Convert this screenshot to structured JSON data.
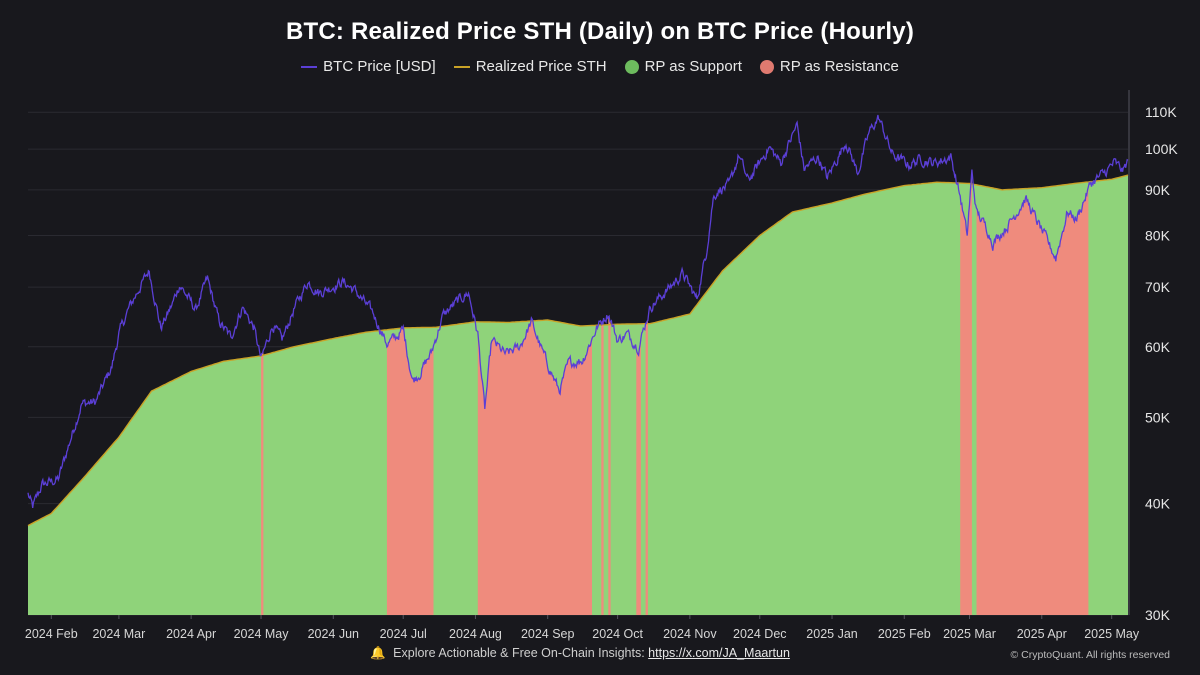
{
  "chart_data": {
    "type": "line",
    "title": "BTC: Realized Price STH (Daily) on BTC Price (Hourly)",
    "y_scale": "log",
    "ylim": [
      30000,
      115000
    ],
    "y_ticks": [
      30000,
      40000,
      50000,
      60000,
      70000,
      80000,
      90000,
      100000,
      110000
    ],
    "y_tick_labels": [
      "30K",
      "40K",
      "50K",
      "60K",
      "70K",
      "80K",
      "90K",
      "100K",
      "110K"
    ],
    "x_range": [
      "2024-01-22",
      "2025-05-08"
    ],
    "x_tick_labels": [
      {
        "date": "2024-02-01",
        "label": "2024 Feb"
      },
      {
        "date": "2024-03-01",
        "label": "2024 Mar"
      },
      {
        "date": "2024-04-01",
        "label": "2024 Apr"
      },
      {
        "date": "2024-05-01",
        "label": "2024 May"
      },
      {
        "date": "2024-06-01",
        "label": "2024 Jun"
      },
      {
        "date": "2024-07-01",
        "label": "2024 Jul"
      },
      {
        "date": "2024-08-01",
        "label": "2024 Aug"
      },
      {
        "date": "2024-09-01",
        "label": "2024 Sep"
      },
      {
        "date": "2024-10-01",
        "label": "2024 Oct"
      },
      {
        "date": "2024-11-01",
        "label": "2024 Nov"
      },
      {
        "date": "2024-12-01",
        "label": "2024 Dec"
      },
      {
        "date": "2025-01-01",
        "label": "2025 Jan"
      },
      {
        "date": "2025-02-01",
        "label": "2025 Feb"
      },
      {
        "date": "2025-03-01",
        "label": "2025 Mar"
      },
      {
        "date": "2025-04-01",
        "label": "2025 Apr"
      },
      {
        "date": "2025-05-01",
        "label": "2025 May"
      }
    ],
    "grid": true,
    "legend_position": "top-center",
    "series": [
      {
        "name": "BTC Price [USD]",
        "color": "#5b3fd6",
        "points": [
          [
            "2024-01-22",
            41000
          ],
          [
            "2024-01-24",
            39600
          ],
          [
            "2024-01-28",
            42000
          ],
          [
            "2024-02-04",
            42600
          ],
          [
            "2024-02-09",
            47000
          ],
          [
            "2024-02-14",
            51800
          ],
          [
            "2024-02-20",
            52000
          ],
          [
            "2024-02-27",
            57000
          ],
          [
            "2024-03-01",
            62000
          ],
          [
            "2024-03-05",
            66000
          ],
          [
            "2024-03-10",
            70000
          ],
          [
            "2024-03-14",
            73000
          ],
          [
            "2024-03-19",
            63000
          ],
          [
            "2024-03-24",
            67000
          ],
          [
            "2024-03-27",
            70500
          ],
          [
            "2024-04-03",
            66000
          ],
          [
            "2024-04-08",
            71500
          ],
          [
            "2024-04-13",
            64000
          ],
          [
            "2024-04-18",
            61500
          ],
          [
            "2024-04-23",
            66500
          ],
          [
            "2024-04-28",
            63000
          ],
          [
            "2024-05-01",
            58000
          ],
          [
            "2024-05-06",
            63500
          ],
          [
            "2024-05-10",
            61000
          ],
          [
            "2024-05-15",
            66000
          ],
          [
            "2024-05-21",
            71000
          ],
          [
            "2024-05-26",
            69000
          ],
          [
            "2024-06-05",
            71000
          ],
          [
            "2024-06-10",
            69500
          ],
          [
            "2024-06-18",
            65500
          ],
          [
            "2024-06-24",
            60500
          ],
          [
            "2024-06-28",
            61500
          ],
          [
            "2024-07-01",
            62700
          ],
          [
            "2024-07-05",
            55000
          ],
          [
            "2024-07-08",
            56000
          ],
          [
            "2024-07-13",
            59000
          ],
          [
            "2024-07-18",
            65000
          ],
          [
            "2024-07-23",
            67000
          ],
          [
            "2024-07-29",
            69000
          ],
          [
            "2024-08-02",
            62000
          ],
          [
            "2024-08-05",
            51000
          ],
          [
            "2024-08-08",
            61000
          ],
          [
            "2024-08-14",
            58800
          ],
          [
            "2024-08-20",
            60000
          ],
          [
            "2024-08-25",
            64000
          ],
          [
            "2024-08-30",
            59000
          ],
          [
            "2024-09-06",
            53500
          ],
          [
            "2024-09-10",
            57500
          ],
          [
            "2024-09-16",
            58000
          ],
          [
            "2024-09-22",
            63000
          ],
          [
            "2024-09-27",
            65500
          ],
          [
            "2024-10-01",
            61000
          ],
          [
            "2024-10-05",
            62000
          ],
          [
            "2024-10-10",
            60000
          ],
          [
            "2024-10-15",
            66500
          ],
          [
            "2024-10-20",
            68500
          ],
          [
            "2024-10-29",
            72500
          ],
          [
            "2024-11-04",
            67800
          ],
          [
            "2024-11-08",
            76500
          ],
          [
            "2024-11-11",
            88000
          ],
          [
            "2024-11-13",
            90000
          ],
          [
            "2024-11-18",
            91000
          ],
          [
            "2024-11-22",
            98500
          ],
          [
            "2024-11-26",
            92000
          ],
          [
            "2024-12-05",
            100500
          ],
          [
            "2024-12-10",
            96500
          ],
          [
            "2024-12-17",
            106500
          ],
          [
            "2024-12-20",
            95000
          ],
          [
            "2024-12-26",
            98000
          ],
          [
            "2024-12-30",
            92800
          ],
          [
            "2025-01-07",
            102000
          ],
          [
            "2025-01-12",
            94000
          ],
          [
            "2025-01-17",
            104500
          ],
          [
            "2025-01-21",
            108500
          ],
          [
            "2025-01-27",
            98500
          ],
          [
            "2025-02-03",
            96000
          ],
          [
            "2025-02-08",
            97500
          ],
          [
            "2025-02-14",
            96500
          ],
          [
            "2025-02-21",
            98000
          ],
          [
            "2025-02-25",
            88500
          ],
          [
            "2025-02-28",
            80000
          ],
          [
            "2025-03-02",
            94000
          ],
          [
            "2025-03-04",
            85000
          ],
          [
            "2025-03-09",
            81000
          ],
          [
            "2025-03-11",
            78500
          ],
          [
            "2025-03-18",
            82500
          ],
          [
            "2025-03-25",
            88000
          ],
          [
            "2025-03-31",
            82000
          ],
          [
            "2025-04-07",
            75500
          ],
          [
            "2025-04-12",
            85000
          ],
          [
            "2025-04-16",
            83500
          ],
          [
            "2025-04-22",
            91500
          ],
          [
            "2025-04-28",
            94000
          ],
          [
            "2025-05-02",
            96500
          ],
          [
            "2025-05-06",
            94500
          ],
          [
            "2025-05-08",
            97000
          ]
        ]
      },
      {
        "name": "Realized Price STH",
        "color": "#c9a227",
        "points": [
          [
            "2024-01-22",
            37800
          ],
          [
            "2024-02-01",
            39000
          ],
          [
            "2024-02-15",
            42800
          ],
          [
            "2024-03-01",
            47500
          ],
          [
            "2024-03-15",
            53500
          ],
          [
            "2024-04-01",
            56300
          ],
          [
            "2024-04-15",
            57800
          ],
          [
            "2024-05-01",
            58600
          ],
          [
            "2024-05-15",
            60000
          ],
          [
            "2024-06-01",
            61300
          ],
          [
            "2024-06-15",
            62300
          ],
          [
            "2024-07-01",
            63000
          ],
          [
            "2024-07-15",
            63100
          ],
          [
            "2024-08-01",
            64000
          ],
          [
            "2024-08-15",
            63900
          ],
          [
            "2024-09-01",
            64300
          ],
          [
            "2024-09-15",
            63300
          ],
          [
            "2024-10-01",
            63600
          ],
          [
            "2024-10-15",
            63700
          ],
          [
            "2024-11-01",
            65300
          ],
          [
            "2024-11-15",
            73000
          ],
          [
            "2024-12-01",
            80000
          ],
          [
            "2024-12-15",
            85000
          ],
          [
            "2025-01-01",
            87000
          ],
          [
            "2025-01-15",
            89000
          ],
          [
            "2025-02-01",
            91000
          ],
          [
            "2025-02-15",
            91800
          ],
          [
            "2025-03-01",
            91500
          ],
          [
            "2025-03-15",
            90000
          ],
          [
            "2025-04-01",
            90500
          ],
          [
            "2025-04-15",
            91500
          ],
          [
            "2025-05-01",
            92500
          ],
          [
            "2025-05-08",
            93500
          ]
        ]
      }
    ],
    "regions": {
      "support": {
        "name": "RP as Support",
        "color": "#8fd37a"
      },
      "resistance": {
        "name": "RP as Resistance",
        "color": "#ef8b7d"
      },
      "resistance_spans": [
        [
          "2024-05-01",
          "2024-05-02"
        ],
        [
          "2024-06-24",
          "2024-07-14"
        ],
        [
          "2024-08-02",
          "2024-09-20"
        ],
        [
          "2024-09-24",
          "2024-09-25"
        ],
        [
          "2024-09-27",
          "2024-09-28"
        ],
        [
          "2024-10-09",
          "2024-10-11"
        ],
        [
          "2024-10-13",
          "2024-10-14"
        ],
        [
          "2025-02-25",
          "2025-03-02"
        ],
        [
          "2025-03-04",
          "2025-04-21"
        ]
      ]
    }
  },
  "legend": [
    {
      "label": "BTC Price [USD]",
      "kind": "line",
      "color": "#5b3fd6"
    },
    {
      "label": "Realized Price STH",
      "kind": "line",
      "color": "#c9a227"
    },
    {
      "label": "RP as Support",
      "kind": "dot",
      "color": "#6dbb5e"
    },
    {
      "label": "RP as Resistance",
      "kind": "dot",
      "color": "#e07a70"
    }
  ],
  "footer": {
    "text": "Explore Actionable & Free On-Chain Insights:",
    "link": "https://x.com/JA_Maartun",
    "copyright": "© CryptoQuant. All rights reserved"
  },
  "watermark_text": "CryptoQuant"
}
